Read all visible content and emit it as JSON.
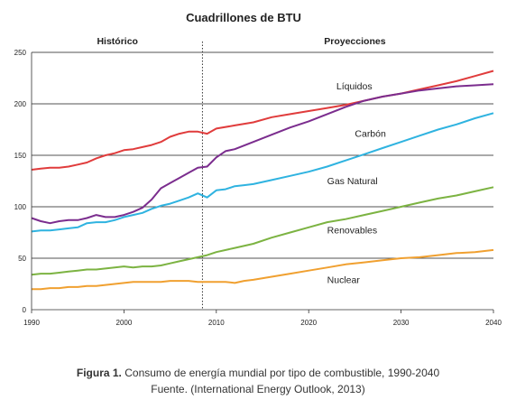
{
  "chart_data": {
    "type": "line",
    "title": "Cuadrillones de BTU",
    "xlim": [
      1990,
      2040
    ],
    "ylim": [
      0,
      250
    ],
    "x_ticks": [
      1990,
      2000,
      2010,
      2020,
      2030,
      2040
    ],
    "y_ticks": [
      0,
      50,
      100,
      150,
      200,
      250
    ],
    "grid": "horizontal",
    "divider": {
      "x": 2008.5,
      "style": "dotted"
    },
    "section_labels": [
      {
        "text": "Histórico",
        "x_center": 1999.3
      },
      {
        "text": "Proyecciones",
        "x_center": 2025
      }
    ],
    "series": [
      {
        "name": "Líquidos",
        "color": "#e03c3c",
        "label_pos": [
          2023,
          214
        ],
        "points": [
          [
            1990,
            136
          ],
          [
            1991,
            137
          ],
          [
            1992,
            138
          ],
          [
            1993,
            138
          ],
          [
            1994,
            139
          ],
          [
            1995,
            141
          ],
          [
            1996,
            143
          ],
          [
            1997,
            147
          ],
          [
            1998,
            150
          ],
          [
            1999,
            152
          ],
          [
            2000,
            155
          ],
          [
            2001,
            156
          ],
          [
            2002,
            158
          ],
          [
            2003,
            160
          ],
          [
            2004,
            163
          ],
          [
            2005,
            168
          ],
          [
            2006,
            171
          ],
          [
            2007,
            173
          ],
          [
            2008,
            173
          ],
          [
            2009,
            171
          ],
          [
            2010,
            176
          ],
          [
            2012,
            179
          ],
          [
            2014,
            182
          ],
          [
            2016,
            187
          ],
          [
            2018,
            190
          ],
          [
            2020,
            193
          ],
          [
            2022,
            196
          ],
          [
            2024,
            199
          ],
          [
            2026,
            203
          ],
          [
            2028,
            207
          ],
          [
            2030,
            210
          ],
          [
            2032,
            214
          ],
          [
            2034,
            218
          ],
          [
            2036,
            222
          ],
          [
            2038,
            227
          ],
          [
            2040,
            232
          ]
        ]
      },
      {
        "name": "Carbón",
        "color": "#7b2d8e",
        "label_pos": [
          2025,
          168
        ],
        "points": [
          [
            1990,
            89
          ],
          [
            1991,
            86
          ],
          [
            1992,
            84
          ],
          [
            1993,
            86
          ],
          [
            1994,
            87
          ],
          [
            1995,
            87
          ],
          [
            1996,
            89
          ],
          [
            1997,
            92
          ],
          [
            1998,
            90
          ],
          [
            1999,
            90
          ],
          [
            2000,
            92
          ],
          [
            2001,
            95
          ],
          [
            2002,
            99
          ],
          [
            2003,
            107
          ],
          [
            2004,
            118
          ],
          [
            2005,
            123
          ],
          [
            2006,
            128
          ],
          [
            2007,
            133
          ],
          [
            2008,
            138
          ],
          [
            2009,
            139
          ],
          [
            2010,
            148
          ],
          [
            2011,
            154
          ],
          [
            2012,
            156
          ],
          [
            2014,
            163
          ],
          [
            2016,
            170
          ],
          [
            2018,
            177
          ],
          [
            2020,
            183
          ],
          [
            2022,
            190
          ],
          [
            2024,
            197
          ],
          [
            2026,
            203
          ],
          [
            2028,
            207
          ],
          [
            2030,
            210
          ],
          [
            2032,
            213
          ],
          [
            2034,
            215
          ],
          [
            2036,
            217
          ],
          [
            2038,
            218
          ],
          [
            2040,
            219
          ]
        ]
      },
      {
        "name": "Gas Natural",
        "color": "#2fb3e0",
        "label_pos": [
          2022,
          122
        ],
        "points": [
          [
            1990,
            76
          ],
          [
            1991,
            77
          ],
          [
            1992,
            77
          ],
          [
            1993,
            78
          ],
          [
            1994,
            79
          ],
          [
            1995,
            80
          ],
          [
            1996,
            84
          ],
          [
            1997,
            85
          ],
          [
            1998,
            85
          ],
          [
            1999,
            87
          ],
          [
            2000,
            90
          ],
          [
            2001,
            92
          ],
          [
            2002,
            94
          ],
          [
            2003,
            98
          ],
          [
            2004,
            101
          ],
          [
            2005,
            103
          ],
          [
            2006,
            106
          ],
          [
            2007,
            109
          ],
          [
            2008,
            113
          ],
          [
            2009,
            109
          ],
          [
            2010,
            116
          ],
          [
            2011,
            117
          ],
          [
            2012,
            120
          ],
          [
            2013,
            121
          ],
          [
            2014,
            122
          ],
          [
            2016,
            126
          ],
          [
            2018,
            130
          ],
          [
            2020,
            134
          ],
          [
            2022,
            139
          ],
          [
            2024,
            145
          ],
          [
            2026,
            151
          ],
          [
            2028,
            157
          ],
          [
            2030,
            163
          ],
          [
            2032,
            169
          ],
          [
            2034,
            175
          ],
          [
            2036,
            180
          ],
          [
            2038,
            186
          ],
          [
            2040,
            191
          ]
        ]
      },
      {
        "name": "Renovables",
        "color": "#7cb342",
        "label_pos": [
          2022,
          74
        ],
        "points": [
          [
            1990,
            34
          ],
          [
            1991,
            35
          ],
          [
            1992,
            35
          ],
          [
            1993,
            36
          ],
          [
            1994,
            37
          ],
          [
            1995,
            38
          ],
          [
            1996,
            39
          ],
          [
            1997,
            39
          ],
          [
            1998,
            40
          ],
          [
            1999,
            41
          ],
          [
            2000,
            42
          ],
          [
            2001,
            41
          ],
          [
            2002,
            42
          ],
          [
            2003,
            42
          ],
          [
            2004,
            43
          ],
          [
            2005,
            45
          ],
          [
            2006,
            47
          ],
          [
            2007,
            49
          ],
          [
            2008,
            51
          ],
          [
            2009,
            53
          ],
          [
            2010,
            56
          ],
          [
            2012,
            60
          ],
          [
            2014,
            64
          ],
          [
            2016,
            70
          ],
          [
            2018,
            75
          ],
          [
            2020,
            80
          ],
          [
            2022,
            85
          ],
          [
            2024,
            88
          ],
          [
            2026,
            92
          ],
          [
            2028,
            96
          ],
          [
            2030,
            100
          ],
          [
            2032,
            104
          ],
          [
            2034,
            108
          ],
          [
            2036,
            111
          ],
          [
            2038,
            115
          ],
          [
            2040,
            119
          ]
        ]
      },
      {
        "name": "Nuclear",
        "color": "#f0a030",
        "label_pos": [
          2022,
          26
        ],
        "points": [
          [
            1990,
            20
          ],
          [
            1991,
            20
          ],
          [
            1992,
            21
          ],
          [
            1993,
            21
          ],
          [
            1994,
            22
          ],
          [
            1995,
            22
          ],
          [
            1996,
            23
          ],
          [
            1997,
            23
          ],
          [
            1998,
            24
          ],
          [
            1999,
            25
          ],
          [
            2000,
            26
          ],
          [
            2001,
            27
          ],
          [
            2002,
            27
          ],
          [
            2003,
            27
          ],
          [
            2004,
            27
          ],
          [
            2005,
            28
          ],
          [
            2006,
            28
          ],
          [
            2007,
            28
          ],
          [
            2008,
            27
          ],
          [
            2009,
            27
          ],
          [
            2010,
            27
          ],
          [
            2011,
            27
          ],
          [
            2012,
            26
          ],
          [
            2013,
            28
          ],
          [
            2014,
            29
          ],
          [
            2016,
            32
          ],
          [
            2018,
            35
          ],
          [
            2020,
            38
          ],
          [
            2022,
            41
          ],
          [
            2024,
            44
          ],
          [
            2026,
            46
          ],
          [
            2028,
            48
          ],
          [
            2030,
            50
          ],
          [
            2032,
            51
          ],
          [
            2034,
            53
          ],
          [
            2036,
            55
          ],
          [
            2038,
            56
          ],
          [
            2040,
            58
          ]
        ]
      }
    ]
  },
  "caption": {
    "label": "Figura 1.",
    "text": " Consumo de energía mundial por tipo de combustible, 1990-2040",
    "source": "Fuente. (International Energy Outlook, 2013)"
  }
}
